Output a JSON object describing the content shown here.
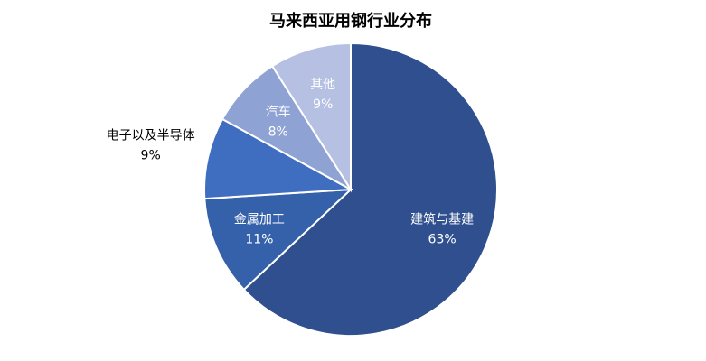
{
  "chart_data": {
    "type": "pie",
    "title": "马来西亚用钢行业分布",
    "categories": [
      "建筑与基建",
      "金属加工",
      "电子以及半导体",
      "汽车",
      "其他"
    ],
    "values": [
      63,
      11,
      9,
      8,
      9
    ],
    "value_labels": [
      "63%",
      "11%",
      "9%",
      "8%",
      "9%"
    ],
    "colors": [
      "#2f4f8f",
      "#3461aa",
      "#3f6ec0",
      "#8fa2d4",
      "#b5c0e2"
    ]
  }
}
